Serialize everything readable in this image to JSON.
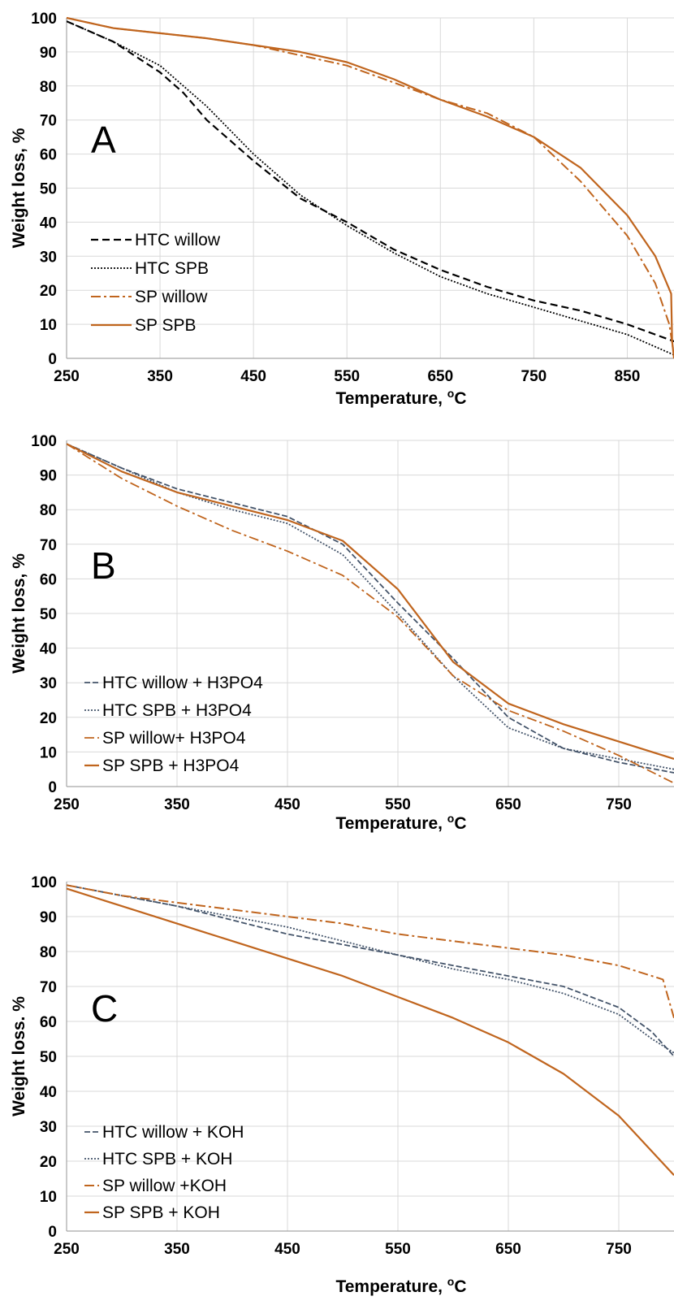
{
  "colors": {
    "htc": "#000000",
    "htc_blue": "#44546A",
    "sp": "#C0651E",
    "grid": "#D9D9D9",
    "axis": "#A6A6A6"
  },
  "chart_data": [
    {
      "type": "line",
      "panel": "A",
      "xlabel": "Temperature, ",
      "xlabel_sup": "o",
      "xlabel_suffix": "C",
      "ylabel": "Weight loss, %",
      "xlim": [
        250,
        900
      ],
      "ylim": [
        0,
        100
      ],
      "xticks": [
        250,
        350,
        450,
        550,
        650,
        750,
        850
      ],
      "yticks": [
        0,
        10,
        20,
        30,
        40,
        50,
        60,
        70,
        80,
        90,
        100
      ],
      "legend": "bottom-left",
      "grid": true,
      "series": [
        {
          "name": "HTC willow",
          "color": "#000000",
          "dash": "9 5",
          "width": 2.2,
          "x": [
            250,
            300,
            350,
            375,
            400,
            450,
            500,
            550,
            600,
            650,
            700,
            750,
            800,
            850,
            900
          ],
          "y": [
            99,
            93,
            84,
            78,
            70,
            58,
            47,
            40,
            32,
            26,
            21,
            17,
            14,
            10,
            5
          ]
        },
        {
          "name": "HTC SPB",
          "color": "#000000",
          "dash": "2 2",
          "width": 1.8,
          "x": [
            250,
            300,
            350,
            400,
            450,
            500,
            550,
            600,
            650,
            700,
            750,
            800,
            850,
            900
          ],
          "y": [
            99,
            93,
            86,
            74,
            60,
            48,
            39,
            31,
            24,
            19,
            15,
            11,
            7,
            1
          ]
        },
        {
          "name": "SP willow",
          "color": "#C0651E",
          "dash": "12 4 3 4",
          "width": 2,
          "x": [
            250,
            300,
            400,
            450,
            500,
            550,
            600,
            650,
            700,
            750,
            800,
            850,
            880,
            895,
            900
          ],
          "y": [
            100,
            97,
            94,
            92,
            89,
            86,
            81,
            76,
            72,
            65,
            52,
            36,
            22,
            10,
            1
          ]
        },
        {
          "name": "SP SPB",
          "color": "#C0651E",
          "dash": "",
          "width": 2.2,
          "x": [
            250,
            300,
            400,
            450,
            500,
            550,
            600,
            650,
            700,
            750,
            800,
            850,
            880,
            897,
            898,
            900
          ],
          "y": [
            100,
            97,
            94,
            92,
            90,
            87,
            82,
            76,
            71,
            65,
            56,
            42,
            30,
            19,
            5,
            0
          ]
        }
      ]
    },
    {
      "type": "line",
      "panel": "B",
      "xlabel": "Temperature, ",
      "xlabel_sup": "o",
      "xlabel_suffix": "C",
      "ylabel": "Weight loss, %",
      "xlim": [
        250,
        800
      ],
      "ylim": [
        0,
        100
      ],
      "xticks": [
        250,
        350,
        450,
        550,
        650,
        750
      ],
      "yticks": [
        0,
        10,
        20,
        30,
        40,
        50,
        60,
        70,
        80,
        90,
        100
      ],
      "legend": "bottom-left",
      "grid": true,
      "series": [
        {
          "name": "HTC willow + H3PO4",
          "color": "#44546A",
          "dash": "7 3",
          "width": 1.8,
          "x": [
            250,
            300,
            350,
            400,
            450,
            500,
            550,
            600,
            650,
            700,
            750,
            800
          ],
          "y": [
            99,
            92,
            86,
            82,
            78,
            70,
            53,
            37,
            20,
            11,
            7,
            4
          ]
        },
        {
          "name": "HTC SPB + H3PO4",
          "color": "#44546A",
          "dash": "2 2",
          "width": 1.8,
          "x": [
            250,
            300,
            350,
            400,
            450,
            500,
            550,
            600,
            650,
            700,
            750,
            800
          ],
          "y": [
            99,
            92,
            85,
            80,
            76,
            67,
            50,
            32,
            17,
            11,
            8,
            5
          ]
        },
        {
          "name": "SP willow+ H3PO4",
          "color": "#C0651E",
          "dash": "12 4 3 4",
          "width": 1.8,
          "x": [
            250,
            300,
            350,
            400,
            450,
            500,
            550,
            600,
            650,
            700,
            750,
            800
          ],
          "y": [
            99,
            89,
            81,
            74,
            68,
            61,
            49,
            32,
            22,
            16,
            9,
            1
          ]
        },
        {
          "name": "SP SPB + H3PO4",
          "color": "#C0651E",
          "dash": "",
          "width": 2.2,
          "x": [
            250,
            300,
            350,
            400,
            450,
            500,
            550,
            600,
            650,
            700,
            750,
            800
          ],
          "y": [
            99,
            91,
            85,
            81,
            77,
            71,
            57,
            36,
            24,
            18,
            13,
            8
          ]
        }
      ]
    },
    {
      "type": "line",
      "panel": "C",
      "xlabel": "Temperature, ",
      "xlabel_sup": "o",
      "xlabel_suffix": "C",
      "ylabel": "Weight loss. %",
      "xlim": [
        250,
        800
      ],
      "ylim": [
        0,
        100
      ],
      "xticks": [
        250,
        350,
        450,
        550,
        650,
        750
      ],
      "yticks": [
        0,
        10,
        20,
        30,
        40,
        50,
        60,
        70,
        80,
        90,
        100
      ],
      "legend": "bottom-left",
      "grid": true,
      "series": [
        {
          "name": "HTC willow + KOH",
          "color": "#44546A",
          "dash": "7 3",
          "width": 1.8,
          "x": [
            250,
            300,
            350,
            400,
            450,
            500,
            550,
            600,
            650,
            700,
            750,
            780,
            800
          ],
          "y": [
            99,
            96,
            93,
            89,
            85,
            82,
            79,
            76,
            73,
            70,
            64,
            57,
            50
          ]
        },
        {
          "name": "HTC SPB + KOH",
          "color": "#44546A",
          "dash": "2 2",
          "width": 1.8,
          "x": [
            250,
            300,
            350,
            400,
            450,
            500,
            550,
            600,
            650,
            700,
            750,
            780,
            800
          ],
          "y": [
            99,
            96,
            93,
            90,
            87,
            83,
            79,
            75,
            72,
            68,
            62,
            55,
            51
          ]
        },
        {
          "name": "SP willow +KOH",
          "color": "#C0651E",
          "dash": "12 4 3 4",
          "width": 2,
          "x": [
            250,
            300,
            350,
            400,
            450,
            500,
            550,
            600,
            650,
            700,
            750,
            790,
            800
          ],
          "y": [
            99,
            96,
            94,
            92,
            90,
            88,
            85,
            83,
            81,
            79,
            76,
            72,
            61
          ]
        },
        {
          "name": "SP SPB + KOH",
          "color": "#C0651E",
          "dash": "",
          "width": 2.2,
          "x": [
            250,
            300,
            350,
            400,
            450,
            500,
            550,
            600,
            650,
            700,
            750,
            800
          ],
          "y": [
            98,
            93,
            88,
            83,
            78,
            73,
            67,
            61,
            54,
            45,
            33,
            16
          ]
        }
      ]
    }
  ]
}
